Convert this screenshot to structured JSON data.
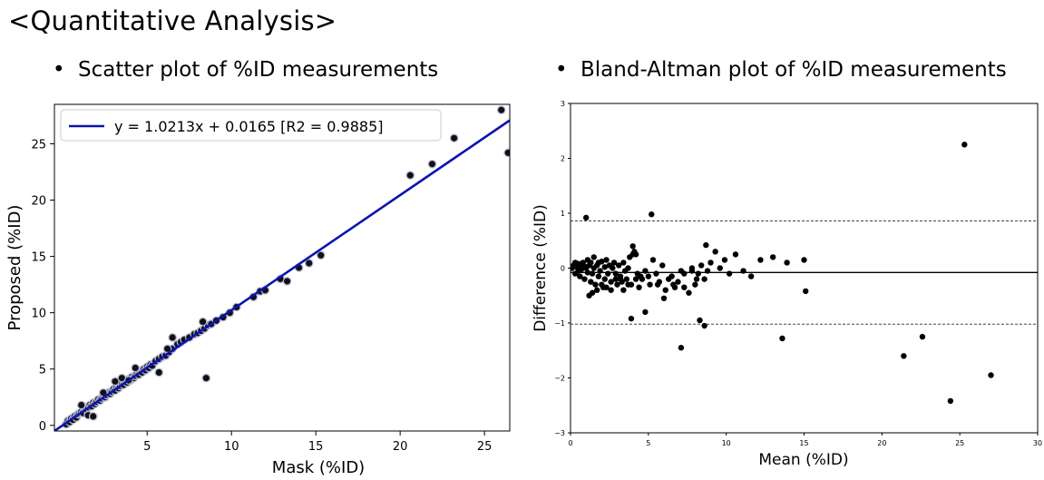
{
  "page": {
    "title": "<Quantitative Analysis>",
    "bullets": [
      "Scatter plot of %ID measurements",
      "Bland-Altman plot of %ID measurements"
    ],
    "bullet_symbol": "•"
  },
  "chart_data": [
    {
      "type": "scatter",
      "title": "",
      "xlabel": "Mask (%ID)",
      "ylabel": "Proposed (%ID)",
      "xlim": [
        -0.5,
        26.5
      ],
      "ylim": [
        -0.5,
        28.5
      ],
      "xticks": [
        5,
        10,
        15,
        20,
        25
      ],
      "yticks": [
        0,
        5,
        10,
        15,
        20,
        25
      ],
      "legend": {
        "position": "top-left",
        "label": "y = 1.0213x + 0.0165 [R2 = 0.9885]",
        "color": "#0b14b0"
      },
      "fit": {
        "slope": 1.0213,
        "intercept": 0.0165
      },
      "point_color": "#111111",
      "x": [
        0.2,
        0.3,
        0.4,
        0.5,
        0.6,
        0.7,
        0.8,
        0.9,
        1.0,
        1.1,
        1.2,
        1.3,
        1.4,
        1.5,
        1.6,
        1.7,
        1.8,
        1.9,
        2.0,
        2.1,
        2.2,
        2.3,
        2.4,
        2.5,
        2.6,
        2.7,
        2.8,
        2.9,
        3.0,
        3.1,
        3.2,
        3.3,
        3.4,
        3.5,
        3.6,
        3.7,
        3.8,
        3.9,
        4.0,
        4.1,
        4.2,
        4.3,
        4.4,
        4.5,
        4.6,
        4.7,
        4.8,
        4.9,
        5.0,
        5.1,
        5.2,
        5.3,
        5.5,
        5.7,
        5.9,
        6.1,
        6.3,
        6.5,
        6.8,
        7.0,
        7.2,
        7.5,
        7.8,
        8.0,
        8.2,
        8.4,
        8.6,
        8.8,
        9.1,
        9.5,
        9.9,
        10.3,
        11.3,
        11.7,
        12.0,
        12.9,
        13.3,
        14.0,
        14.6,
        15.3,
        1.1,
        1.5,
        1.8,
        2.4,
        3.1,
        3.5,
        3.9,
        4.3,
        5.7,
        6.2,
        6.5,
        8.5,
        8.3,
        20.6,
        21.9,
        23.2,
        26.0,
        26.4
      ],
      "y": [
        0.1,
        0.4,
        0.3,
        0.6,
        0.5,
        0.8,
        0.7,
        1.0,
        1.1,
        1.2,
        1.1,
        1.5,
        1.4,
        1.6,
        1.8,
        1.7,
        2.0,
        1.9,
        2.1,
        2.3,
        2.2,
        2.4,
        2.6,
        2.5,
        2.7,
        2.9,
        2.8,
        3.0,
        3.2,
        3.1,
        3.4,
        3.3,
        3.5,
        3.7,
        3.6,
        3.9,
        3.8,
        4.1,
        4.0,
        4.3,
        4.2,
        4.4,
        4.6,
        4.5,
        4.8,
        4.7,
        5.0,
        4.9,
        5.2,
        5.1,
        5.4,
        5.3,
        5.7,
        5.9,
        6.1,
        6.2,
        6.5,
        6.8,
        7.2,
        7.4,
        7.6,
        7.8,
        8.1,
        8.2,
        8.4,
        8.6,
        8.9,
        9.0,
        9.3,
        9.6,
        10.0,
        10.5,
        11.4,
        11.9,
        12.0,
        13.0,
        12.8,
        14.0,
        14.4,
        15.1,
        1.8,
        0.9,
        0.8,
        2.9,
        3.9,
        4.2,
        4.0,
        5.1,
        4.7,
        6.8,
        7.8,
        4.2,
        9.2,
        22.2,
        23.2,
        25.5,
        28.0,
        24.2
      ]
    },
    {
      "type": "scatter",
      "title": "",
      "xlabel": "Mean (%ID)",
      "ylabel": "Difference (%ID)",
      "xlim": [
        0,
        30
      ],
      "ylim": [
        -3,
        3
      ],
      "xticks": [
        0,
        5,
        10,
        15,
        20,
        25,
        30
      ],
      "yticks": [
        -3,
        -2,
        -1,
        0,
        1,
        2,
        3
      ],
      "mean_line": -0.08,
      "upper_loa": 0.86,
      "lower_loa": -1.02,
      "point_color": "#000000",
      "x": [
        0.1,
        0.2,
        0.3,
        0.3,
        0.4,
        0.5,
        0.5,
        0.6,
        0.7,
        0.7,
        0.8,
        0.9,
        0.9,
        1.0,
        1.1,
        1.1,
        1.2,
        1.3,
        1.3,
        1.4,
        1.5,
        1.5,
        1.6,
        1.7,
        1.8,
        1.8,
        1.9,
        2.0,
        2.1,
        2.2,
        2.2,
        2.3,
        2.4,
        2.5,
        2.6,
        2.7,
        2.8,
        2.9,
        3.0,
        3.1,
        3.2,
        3.3,
        3.4,
        3.5,
        3.6,
        3.7,
        3.8,
        3.9,
        4.0,
        4.1,
        4.2,
        4.3,
        4.4,
        4.6,
        4.8,
        5.0,
        5.1,
        5.3,
        5.5,
        5.7,
        5.9,
        6.1,
        6.3,
        6.5,
        6.7,
        6.9,
        7.1,
        7.3,
        7.6,
        7.8,
        8.0,
        8.2,
        8.4,
        8.6,
        8.8,
        9.0,
        9.3,
        9.6,
        9.9,
        10.2,
        10.6,
        11.1,
        11.6,
        12.2,
        13.0,
        13.9,
        15.0,
        1.2,
        1.4,
        1.7,
        2.0,
        2.3,
        2.6,
        2.9,
        3.2,
        3.4,
        3.7,
        4.0,
        4.2,
        4.5,
        5.6,
        6.0,
        6.6,
        7.3,
        7.8,
        8.3,
        8.6,
        1.0,
        5.2,
        4.8,
        3.9,
        7.1,
        8.7,
        8.1,
        13.6,
        15.1,
        21.4,
        22.6,
        24.4,
        25.3,
        27.0
      ],
      "y": [
        0.0,
        0.05,
        -0.1,
        0.1,
        0.02,
        -0.05,
        0.08,
        -0.15,
        0.05,
        -0.02,
        0.1,
        -0.2,
        0.03,
        0.0,
        -0.08,
        0.15,
        0.05,
        -0.25,
        0.1,
        -0.1,
        0.0,
        0.2,
        -0.3,
        0.05,
        -0.15,
        0.1,
        -0.05,
        0.12,
        -0.35,
        0.02,
        -0.2,
        0.15,
        -0.1,
        0.05,
        -0.4,
        0.0,
        0.1,
        -0.2,
        -0.3,
        0.05,
        -0.15,
        -0.25,
        0.1,
        -0.05,
        -0.2,
        0.0,
        0.2,
        -0.3,
        0.4,
        0.3,
        0.25,
        -0.1,
        -0.35,
        -0.2,
        -0.05,
        -0.15,
        -0.3,
        0.15,
        -0.1,
        -0.25,
        0.05,
        -0.4,
        -0.2,
        -0.15,
        -0.35,
        -0.25,
        -0.05,
        -0.1,
        -0.45,
        0.0,
        -0.3,
        -0.1,
        0.05,
        -0.2,
        -0.05,
        0.1,
        0.3,
        0.0,
        0.15,
        -0.1,
        0.25,
        -0.05,
        -0.15,
        0.15,
        0.2,
        0.1,
        0.15,
        -0.5,
        -0.45,
        -0.4,
        -0.3,
        -0.35,
        -0.25,
        -0.1,
        -0.2,
        -0.4,
        -0.3,
        0.25,
        -0.2,
        -0.15,
        -0.3,
        -0.55,
        -0.3,
        -0.35,
        -0.05,
        -0.95,
        -1.05,
        0.92,
        0.98,
        -0.8,
        -0.92,
        -1.45,
        0.42,
        -0.2,
        -1.28,
        -0.42,
        -1.6,
        -1.25,
        -2.42,
        2.25,
        -1.95
      ]
    }
  ]
}
